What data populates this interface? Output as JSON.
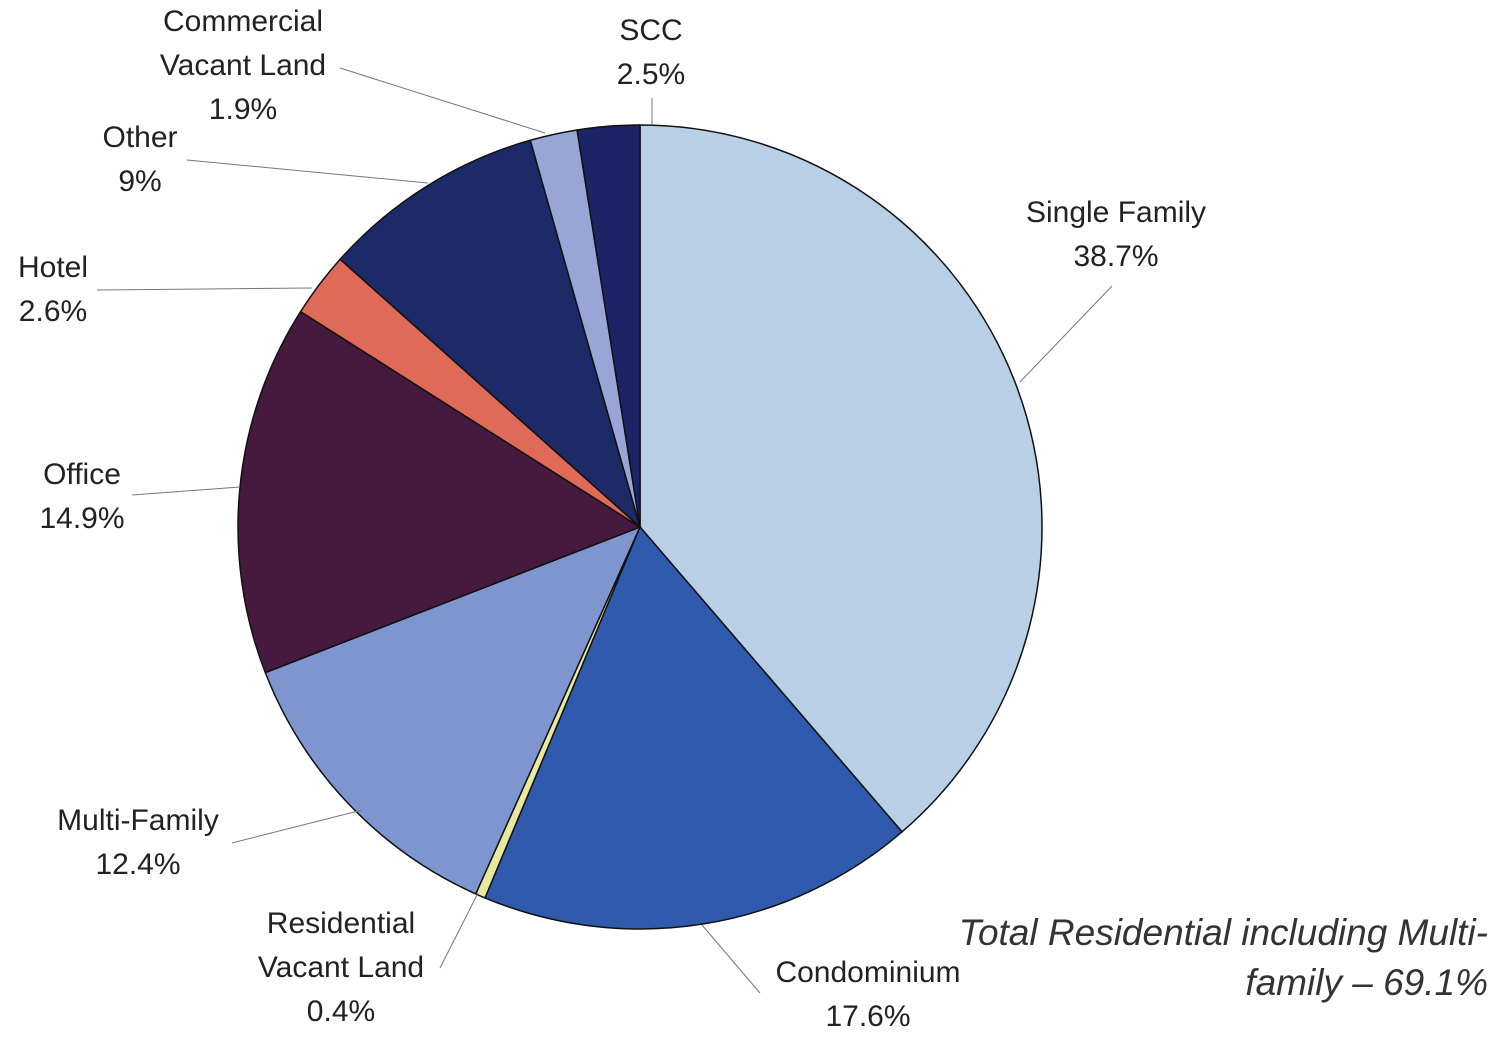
{
  "chart_data": {
    "type": "pie",
    "categories": [
      "Single Family",
      "Condominium",
      "Residential Vacant Land",
      "Multi-Family",
      "Office",
      "Hotel",
      "Other",
      "Commercial Vacant Land",
      "SCC"
    ],
    "values": [
      38.7,
      17.6,
      0.4,
      12.4,
      14.9,
      2.6,
      9,
      1.9,
      2.5
    ],
    "value_labels": [
      "38.7%",
      "17.6%",
      "0.4%",
      "12.4%",
      "14.9%",
      "2.6%",
      "9%",
      "1.9%",
      "2.5%"
    ],
    "colors": [
      "#b9cfe6",
      "#2f5aad",
      "#e8e8a0",
      "#7f95cf",
      "#461a3e",
      "#e06a58",
      "#1c2a68",
      "#97a6d6",
      "#1a2466"
    ],
    "annotation": "Total Residential including Multi-family – 69.1%"
  }
}
